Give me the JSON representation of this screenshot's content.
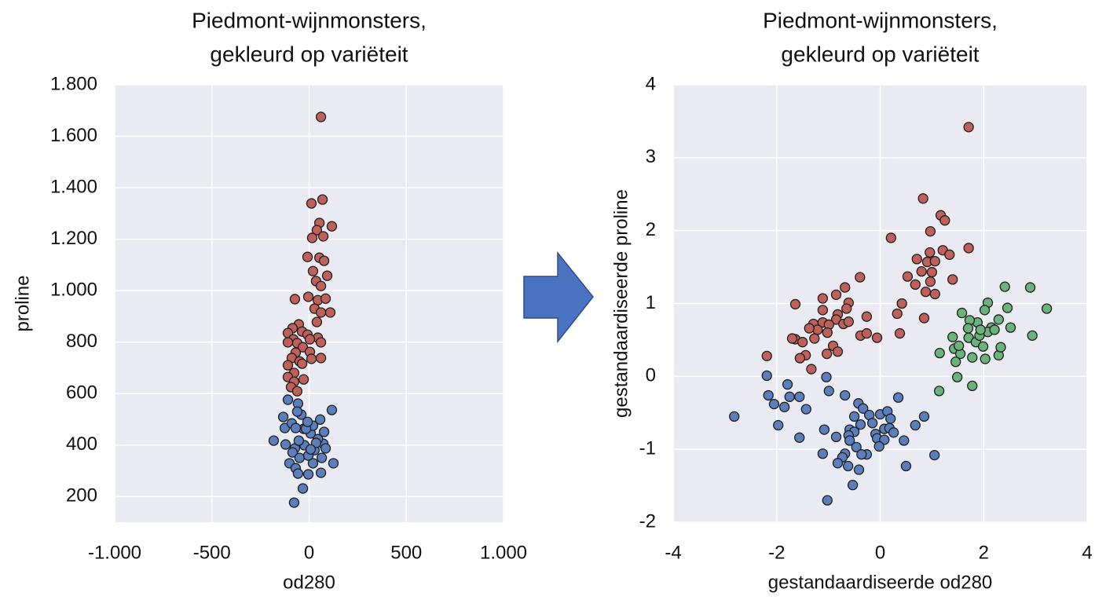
{
  "chart_data": [
    {
      "type": "scatter",
      "title": [
        "Piedmont-wijnmonsters,",
        "gekleurd op variëteit"
      ],
      "xlabel": "od280",
      "ylabel": "proline",
      "xlim": [
        -1000,
        1000
      ],
      "ylim": [
        100,
        1800
      ],
      "xticks": [
        {
          "value": -1000,
          "label": "-1.000"
        },
        -500,
        0,
        500,
        {
          "value": 1000,
          "label": "1.000"
        }
      ],
      "yticks": [
        200,
        400,
        600,
        800,
        {
          "value": 1000,
          "label": "1.000"
        },
        {
          "value": 1200,
          "label": "1.200"
        },
        {
          "value": 1400,
          "label": "1.400"
        },
        {
          "value": 1600,
          "label": "1.600"
        },
        {
          "value": 1800,
          "label": "1.800"
        }
      ],
      "grid": true,
      "background": "#e9eaf2",
      "series": [
        {
          "color": "#c0605a",
          "x": [
            61,
            69,
            12,
            53,
            40,
            117,
            16,
            73,
            -8,
            53,
            77,
            20,
            93,
            36,
            61,
            -4,
            45,
            85,
            -73,
            28,
            61,
            109,
            40,
            -53,
            -85,
            -36,
            -109,
            -8,
            45,
            -81,
            -61,
            4,
            -109,
            -32,
            61,
            -69,
            4,
            -89,
            -49,
            -109,
            -36,
            12,
            61,
            -77,
            -109,
            -28,
            -77,
            -93,
            -61
          ],
          "values": [
            1675,
            1354,
            1339,
            1263,
            1235,
            1250,
            1205,
            1211,
            1131,
            1128,
            1116,
            1076,
            1058,
            1037,
            1018,
            976,
            963,
            969,
            967,
            930,
            915,
            915,
            878,
            869,
            854,
            841,
            835,
            829,
            817,
            811,
            796,
            811,
            799,
            780,
            799,
            759,
            762,
            738,
            725,
            710,
            716,
            735,
            738,
            680,
            664,
            655,
            646,
            625,
            609
          ]
        },
        {
          "color": "#5b7fbd",
          "x": [
            -182,
            -109,
            -133,
            -125,
            -57,
            -40,
            -89,
            -28,
            -121,
            -73,
            -24,
            -85,
            -49,
            -101,
            -69,
            -57,
            -77,
            -32,
            -4,
            20,
            61,
            -4,
            28,
            73,
            45,
            8,
            77,
            117,
            57,
            20,
            -16,
            36,
            125,
            85,
            -8,
            -53,
            -61,
            65,
            8,
            -69
          ],
          "values": [
            417,
            576,
            509,
            466,
            561,
            518,
            484,
            463,
            402,
            387,
            399,
            371,
            350,
            329,
            310,
            289,
            176,
            231,
            286,
            329,
            292,
            359,
            380,
            405,
            423,
            445,
            451,
            536,
            499,
            475,
            463,
            408,
            329,
            387,
            490,
            417,
            530,
            350,
            383,
            466
          ]
        }
      ]
    },
    {
      "type": "scatter",
      "title": [
        "Piedmont-wijnmonsters,",
        "gekleurd op variëteit"
      ],
      "xlabel": "gestandaardiseerde od280",
      "ylabel": "gestandaardiseerde proline",
      "xlim": [
        -4,
        4
      ],
      "ylim": [
        -2,
        4
      ],
      "xticks": [
        -4,
        -2,
        0,
        2,
        4
      ],
      "yticks": [
        -2,
        -1,
        0,
        1,
        2,
        3,
        4
      ],
      "grid": true,
      "background": "#e9eaf2",
      "series": [
        {
          "color": "#c0605a",
          "x": [
            1.71,
            0.83,
            1.17,
            1.25,
            0.97,
            1.71,
            0.21,
            0.71,
            1.21,
            1.34,
            0.96,
            0.91,
            1.06,
            0.8,
            1.0,
            0.53,
            0.97,
            0.68,
            1.4,
            0.88,
            1.06,
            0.42,
            0.33,
            0.85,
            0.38,
            -0.39,
            -0.68,
            -1.11,
            -1.64,
            -0.85,
            -0.61,
            -0.65,
            -0.82,
            -0.85,
            -0.71,
            -0.26,
            -0.61,
            -1.11,
            -1.29,
            -1.11,
            -0.99,
            -1.21,
            -1.37,
            -1.02,
            -1.27,
            -1.64,
            -1.5,
            -1.7,
            -0.91,
            -0.82,
            -1.44,
            -1.33,
            -1.03,
            -1.55,
            -0.38,
            -0.26,
            -0.06,
            -2.19
          ],
          "values": [
            3.42,
            2.44,
            2.21,
            2.14,
            1.99,
            1.76,
            1.9,
            1.61,
            1.73,
            1.67,
            1.7,
            1.57,
            1.58,
            1.44,
            1.43,
            1.37,
            1.3,
            1.26,
            1.33,
            1.16,
            1.13,
            1.0,
            0.86,
            0.8,
            0.59,
            1.36,
            1.22,
            1.07,
            0.99,
            1.12,
            1.01,
            0.93,
            0.85,
            0.78,
            0.72,
            0.82,
            0.75,
            0.91,
            0.72,
            0.74,
            0.71,
            0.64,
            0.66,
            0.6,
            0.52,
            0.51,
            0.47,
            0.52,
            0.42,
            0.34,
            0.29,
            0.1,
            0.31,
            0.25,
            0.56,
            0.59,
            0.53,
            0.28
          ]
        },
        {
          "color": "#5b7fbd",
          "x": [
            -2.82,
            -2.19,
            -2.16,
            -2.05,
            -1.97,
            -1.79,
            -1.75,
            -1.85,
            -1.56,
            -1.43,
            -1.56,
            -1.04,
            -0.99,
            -0.68,
            -1.08,
            -0.85,
            -1.11,
            -1.02,
            -0.68,
            -0.73,
            -0.82,
            -0.62,
            -0.53,
            -0.41,
            -0.59,
            -0.5,
            -0.61,
            -0.59,
            -0.42,
            -0.33,
            -0.5,
            -0.38,
            -0.46,
            -0.26,
            -0.36,
            -0.21,
            -0.15,
            -0.09,
            0.0,
            0.14,
            0.2,
            0.08,
            0.18,
            0.35,
            0.26,
            -0.06,
            0.08,
            0.46,
            0.68,
            0.85,
            0.5,
            1.05,
            -0.02
          ],
          "values": [
            -0.55,
            0.01,
            -0.26,
            -0.38,
            -0.67,
            -0.11,
            -0.28,
            -0.42,
            -0.28,
            -0.45,
            -0.84,
            -0.01,
            -0.2,
            -0.26,
            -0.73,
            -0.83,
            -1.06,
            -1.7,
            -1.06,
            -1.11,
            -1.19,
            -1.23,
            -1.49,
            -1.28,
            -0.73,
            -0.76,
            -0.81,
            -0.88,
            -0.37,
            -0.44,
            -0.55,
            -0.66,
            -0.97,
            -1.07,
            -1.07,
            -0.53,
            -0.64,
            -0.79,
            -0.52,
            -0.48,
            -0.58,
            -0.72,
            -0.71,
            -0.29,
            -0.77,
            -0.85,
            -0.87,
            -0.88,
            -0.67,
            -0.55,
            -1.23,
            -1.08,
            -0.96
          ]
        },
        {
          "color": "#6ab37a",
          "x": [
            3.22,
            2.9,
            2.94,
            2.41,
            2.46,
            2.08,
            2.02,
            2.52,
            2.29,
            2.15,
            1.88,
            1.73,
            1.58,
            1.4,
            1.43,
            1.15,
            1.55,
            1.52,
            1.7,
            1.71,
            1.85,
            1.99,
            1.78,
            2.03,
            2.29,
            2.33,
            2.08,
            1.92,
            1.46,
            1.49,
            1.78,
            1.14,
            2.21,
            1.94
          ],
          "values": [
            0.93,
            1.22,
            0.56,
            1.23,
            0.94,
            1.01,
            0.91,
            0.67,
            0.78,
            0.67,
            0.74,
            0.77,
            0.87,
            0.54,
            0.38,
            0.32,
            0.31,
            0.42,
            0.66,
            0.53,
            0.47,
            0.41,
            0.26,
            0.24,
            0.29,
            0.4,
            0.61,
            0.56,
            0.2,
            -0.01,
            -0.13,
            -0.2,
            0.64,
            0.64
          ]
        }
      ]
    }
  ]
}
